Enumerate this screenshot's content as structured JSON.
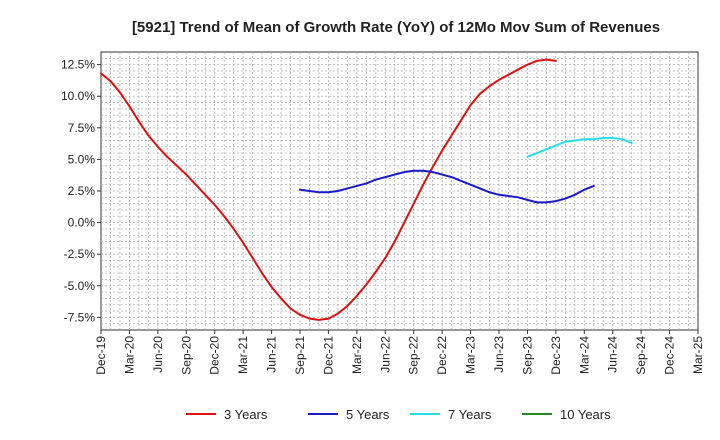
{
  "chart_data": {
    "type": "line",
    "title": "[5921]  Trend of Mean of Growth Rate (YoY) of 12Mo Mov Sum of Revenues",
    "xlabel": "",
    "ylabel": "",
    "ylim": [
      -8.5,
      13.5
    ],
    "y_ticks": [
      12.5,
      10.0,
      7.5,
      5.0,
      2.5,
      0.0,
      -2.5,
      -5.0,
      -7.5
    ],
    "y_tick_labels": [
      "12.5%",
      "10.0%",
      "7.5%",
      "5.0%",
      "2.5%",
      "0.0%",
      "-2.5%",
      "-5.0%",
      "-7.5%"
    ],
    "x_tick_labels": [
      "Dec-19",
      "Mar-20",
      "Jun-20",
      "Sep-20",
      "Dec-20",
      "Mar-21",
      "Jun-21",
      "Sep-21",
      "Dec-21",
      "Mar-22",
      "Jun-22",
      "Sep-22",
      "Dec-22",
      "Mar-23",
      "Jun-23",
      "Sep-23",
      "Dec-23",
      "Mar-24",
      "Jun-24",
      "Sep-24",
      "Dec-24",
      "Mar-25"
    ],
    "grid": true,
    "legend_position": "bottom",
    "series": [
      {
        "name": "3 Years",
        "color": "#dd1111",
        "start_index": 0,
        "values": [
          11.8,
          11.2,
          10.3,
          9.2,
          8.0,
          6.9,
          6.0,
          5.2,
          4.5,
          3.8,
          3.0,
          2.2,
          1.4,
          0.5,
          -0.5,
          -1.6,
          -2.8,
          -4.0,
          -5.1,
          -6.0,
          -6.8,
          -7.3,
          -7.6,
          -7.7,
          -7.6,
          -7.2,
          -6.6,
          -5.8,
          -4.9,
          -3.9,
          -2.8,
          -1.5,
          0.0,
          1.5,
          3.0,
          4.4,
          5.7,
          6.9,
          8.1,
          9.3,
          10.2,
          10.8,
          11.3,
          11.7,
          12.1,
          12.5,
          12.8,
          12.9,
          12.8
        ]
      },
      {
        "name": "5 Years",
        "color": "#1a1acc",
        "start_index": 21,
        "values": [
          2.6,
          2.5,
          2.4,
          2.4,
          2.5,
          2.7,
          2.9,
          3.1,
          3.4,
          3.6,
          3.8,
          4.0,
          4.1,
          4.1,
          4.0,
          3.8,
          3.6,
          3.3,
          3.0,
          2.7,
          2.4,
          2.2,
          2.1,
          2.0,
          1.8,
          1.6,
          1.6,
          1.7,
          1.9,
          2.2,
          2.6,
          2.9
        ]
      },
      {
        "name": "7 Years",
        "color": "#22e0e8",
        "start_index": 45,
        "values": [
          5.2,
          5.5,
          5.8,
          6.1,
          6.4,
          6.5,
          6.6,
          6.6,
          6.7,
          6.7,
          6.6,
          6.3
        ]
      },
      {
        "name": "10 Years",
        "color": "#228822",
        "start_index": 0,
        "values": []
      }
    ]
  }
}
